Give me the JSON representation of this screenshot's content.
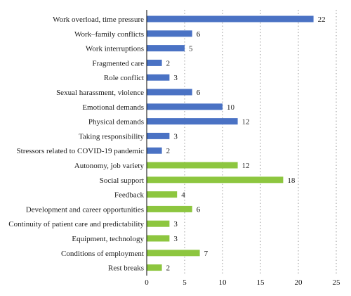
{
  "chart_data": {
    "type": "bar",
    "orientation": "horizontal",
    "categories": [
      "Work overload, time pressure",
      "Work–family conflicts",
      "Work interruptions",
      "Fragmented care",
      "Role conflict",
      "Sexual harassment, violence",
      "Emotional demands",
      "Physical demands",
      "Taking responsibility",
      "Stressors related to COVID-19 pandemic",
      "Autonomy, job variety",
      "Social support",
      "Feedback",
      "Development and career opportunities",
      "Continuity of patient care and predictability",
      "Equipment, technology",
      "Conditions of employment",
      "Rest breaks"
    ],
    "values": [
      22,
      6,
      5,
      2,
      3,
      6,
      10,
      12,
      3,
      2,
      12,
      18,
      4,
      6,
      3,
      3,
      7,
      2
    ],
    "bar_colors": [
      "#4a72c4",
      "#4a72c4",
      "#4a72c4",
      "#4a72c4",
      "#4a72c4",
      "#4a72c4",
      "#4a72c4",
      "#4a72c4",
      "#4a72c4",
      "#4a72c4",
      "#8dc63f",
      "#8dc63f",
      "#8dc63f",
      "#8dc63f",
      "#8dc63f",
      "#8dc63f",
      "#8dc63f",
      "#8dc63f"
    ],
    "xlim": [
      0,
      25
    ],
    "xticks": [
      "0",
      "5",
      "10",
      "15",
      "20",
      "25"
    ],
    "xtick_values": [
      0,
      5,
      10,
      15,
      20,
      25
    ],
    "grid": "vertical dotted",
    "title": "",
    "xlabel": "",
    "ylabel": ""
  }
}
